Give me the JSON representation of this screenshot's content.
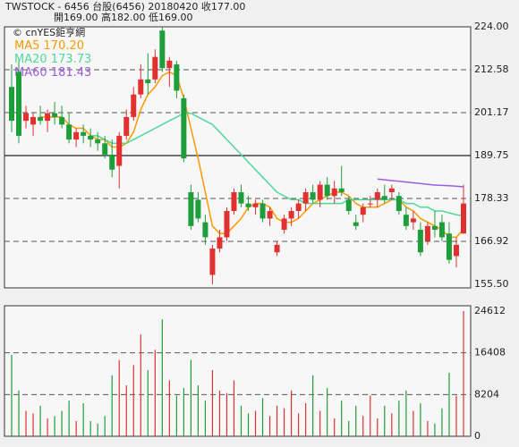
{
  "header": {
    "line1": "TWSTOCK - 6456  台股(6456) 20180420  收177.00",
    "line2": "開169.00  高182.00  低169.00"
  },
  "source": "© cnYES鉅亨網",
  "up_color": "#e03030",
  "down_color": "#1e9e3a",
  "chart_data": [
    {
      "type": "candlestick",
      "ylim": [
        155.5,
        224
      ],
      "yticks": [
        {
          "value": 224,
          "label": "224.00"
        },
        212.58,
        201.17,
        189.75,
        178.33,
        166.92,
        {
          "value": 155.5,
          "label": "155.50"
        }
      ],
      "solid_tick": 189.75,
      "ohlc": [
        [
          208,
          214,
          196,
          199
        ],
        [
          212,
          215,
          193,
          195
        ],
        [
          199,
          203,
          197,
          201
        ],
        [
          198,
          201,
          195,
          200
        ],
        [
          200,
          203,
          198,
          199
        ],
        [
          199,
          202,
          196,
          201
        ],
        [
          201,
          204,
          198,
          200
        ],
        [
          200,
          203,
          197,
          198
        ],
        [
          198,
          201,
          193,
          194
        ],
        [
          194,
          197,
          192,
          196
        ],
        [
          196,
          198,
          193,
          195
        ],
        [
          195,
          197,
          192,
          194
        ],
        [
          194,
          196,
          191,
          193
        ],
        [
          193,
          195,
          189,
          190
        ],
        [
          190,
          194,
          184,
          186
        ],
        [
          187,
          196,
          181,
          195
        ],
        [
          195,
          202,
          194,
          200
        ],
        [
          200,
          208,
          199,
          206
        ],
        [
          206,
          214,
          205,
          210
        ],
        [
          210,
          217,
          206,
          209
        ],
        [
          210,
          218,
          209,
          216
        ],
        [
          223,
          224,
          212,
          213
        ],
        [
          213,
          216,
          208,
          215
        ],
        [
          214,
          215,
          205,
          207
        ],
        [
          205,
          206,
          188,
          189
        ],
        [
          180,
          182,
          170,
          171
        ],
        [
          178,
          180,
          172,
          173
        ],
        [
          172,
          174,
          166,
          168
        ],
        [
          158,
          166,
          155.5,
          165
        ],
        [
          165,
          170,
          164,
          168
        ],
        [
          168,
          176,
          167,
          175
        ],
        [
          175,
          181,
          174,
          180
        ],
        [
          180,
          182,
          176,
          177
        ],
        [
          177,
          179,
          175,
          176
        ],
        [
          176,
          178,
          174,
          177
        ],
        [
          177,
          178,
          172,
          173
        ],
        [
          173,
          176,
          171,
          175
        ],
        [
          164,
          167,
          163,
          166
        ],
        [
          170,
          174,
          169,
          173
        ],
        [
          173,
          176,
          171,
          175
        ],
        [
          175,
          178,
          173,
          177
        ],
        [
          177,
          181,
          175,
          180
        ],
        [
          180,
          182,
          177,
          178
        ],
        [
          178,
          183,
          176,
          182
        ],
        [
          182,
          184,
          178,
          179
        ],
        [
          179,
          183,
          177,
          181
        ],
        [
          181,
          187,
          179,
          180
        ],
        [
          178,
          179,
          174,
          175
        ],
        [
          172,
          174,
          170,
          171
        ],
        [
          174,
          177,
          172,
          176
        ],
        [
          177,
          179,
          176,
          177
        ],
        [
          178,
          181,
          176,
          180
        ],
        [
          179,
          182,
          177,
          178
        ],
        [
          180,
          182,
          178,
          181
        ],
        [
          179,
          180,
          174,
          175
        ],
        [
          174,
          176,
          170,
          171
        ],
        [
          172,
          175,
          170,
          173
        ],
        [
          170,
          172,
          163,
          164
        ],
        [
          167,
          172,
          166,
          171
        ],
        [
          171,
          175,
          168,
          170
        ],
        [
          172,
          174,
          167,
          168
        ],
        [
          169,
          172,
          161,
          162
        ],
        [
          163,
          168,
          160,
          166
        ],
        [
          169,
          182,
          169,
          177
        ]
      ],
      "series": [
        {
          "name": "MA5",
          "label": "170.20",
          "color": "#ff9900",
          "values": [
            null,
            null,
            null,
            null,
            200,
            200,
            200,
            200,
            198,
            197,
            197,
            195,
            194,
            194,
            192,
            192,
            193,
            196,
            202,
            206,
            208,
            211,
            212,
            211,
            205,
            197,
            189,
            180,
            171,
            169,
            169,
            171,
            173,
            176,
            177,
            177,
            176,
            173,
            172,
            172,
            173,
            175,
            177,
            178,
            179,
            180,
            180,
            179,
            177,
            176,
            176,
            176,
            177,
            178,
            178,
            176,
            175,
            173,
            172,
            171,
            170,
            168,
            168,
            170.2
          ]
        },
        {
          "name": "MA20",
          "label": "173.73",
          "color": "#4fd89a",
          "values": [
            null,
            null,
            null,
            null,
            null,
            null,
            null,
            null,
            null,
            null,
            null,
            195,
            195,
            194,
            193,
            193,
            193,
            194,
            195,
            196,
            197,
            198,
            199,
            200,
            201,
            201,
            200,
            199,
            198,
            196,
            194,
            192,
            190,
            188,
            186,
            184,
            182,
            180,
            179,
            178,
            178,
            177,
            177,
            177,
            177,
            177,
            177,
            178,
            178,
            178,
            178,
            178,
            178,
            178,
            178,
            177,
            177,
            176,
            176,
            175,
            175,
            174.5,
            174,
            173.73
          ]
        },
        {
          "name": "MA60",
          "label": "181.43",
          "color": "#9b5de0",
          "values": [
            null,
            null,
            null,
            null,
            null,
            null,
            null,
            null,
            null,
            null,
            null,
            null,
            null,
            null,
            null,
            null,
            null,
            null,
            null,
            null,
            null,
            null,
            null,
            null,
            null,
            null,
            null,
            null,
            null,
            null,
            null,
            null,
            null,
            null,
            null,
            null,
            null,
            null,
            null,
            null,
            null,
            null,
            null,
            null,
            null,
            null,
            null,
            null,
            null,
            null,
            null,
            183.5,
            183.3,
            183.1,
            182.9,
            182.7,
            182.5,
            182.3,
            182.1,
            181.9,
            181.8,
            181.7,
            181.6,
            181.43
          ]
        }
      ]
    },
    {
      "type": "bar",
      "ylim": [
        0,
        24612
      ],
      "yticks": [
        0,
        8204,
        16408,
        24612
      ],
      "values": [
        16000,
        9000,
        5000,
        4500,
        6000,
        3500,
        4000,
        5000,
        7000,
        3000,
        6500,
        3000,
        2500,
        4000,
        12000,
        15000,
        10000,
        14000,
        20000,
        13000,
        17000,
        23000,
        11000,
        8000,
        9500,
        15000,
        10000,
        7000,
        13000,
        9000,
        8500,
        11000,
        6000,
        4500,
        5000,
        7500,
        4000,
        6000,
        5500,
        9000,
        4500,
        6500,
        12000,
        5000,
        9500,
        3500,
        7000,
        3000,
        6000,
        4000,
        8000,
        3500,
        6000,
        4500,
        7000,
        9000,
        5000,
        6500,
        3000,
        2500,
        5500,
        12500,
        8000,
        24612
      ]
    }
  ]
}
